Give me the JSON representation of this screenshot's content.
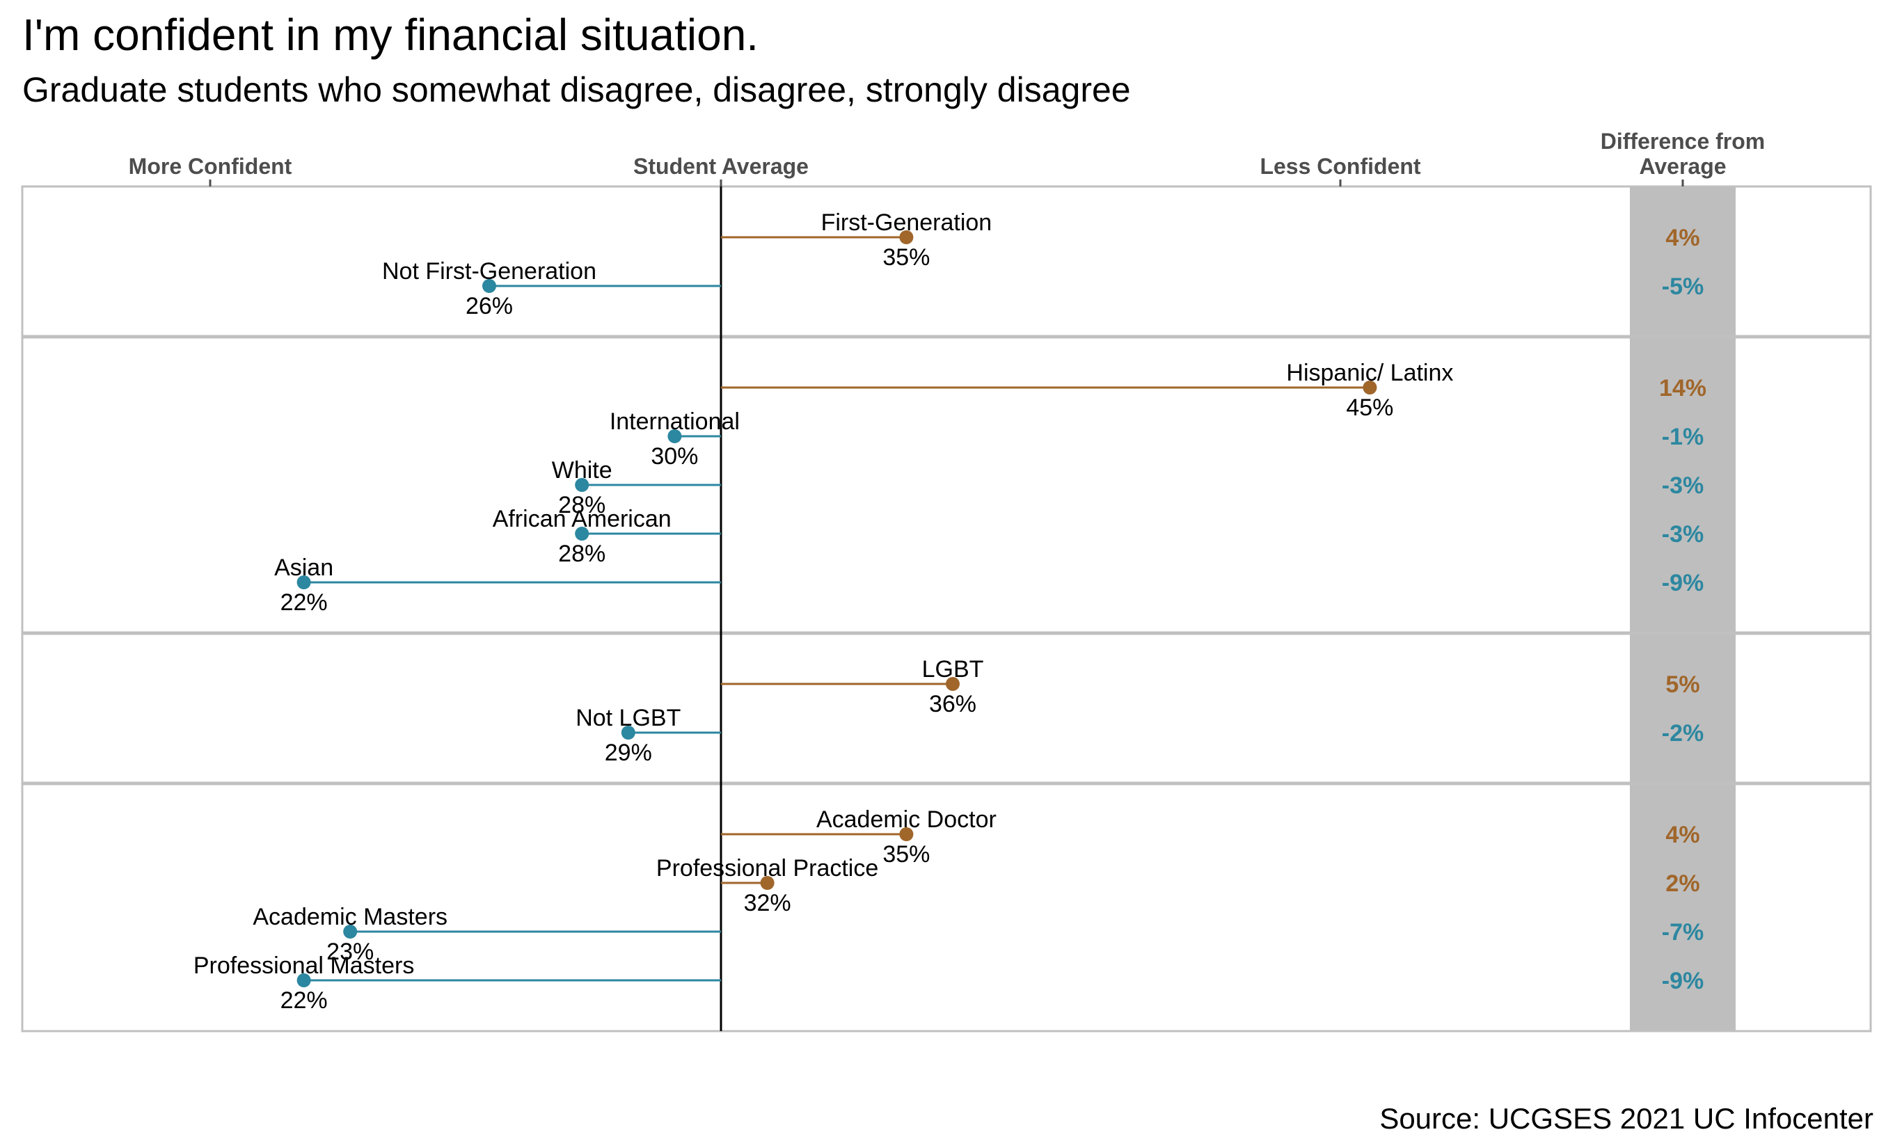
{
  "title": "I'm confident in my financial situation.",
  "subtitle": "Graduate students who somewhat disagree, disagree, strongly disagree",
  "source": "Source: UCGSES 2021 UC Infocenter",
  "colors": {
    "above": "#a0662a",
    "below": "#2c87a0",
    "panel_border": "#c0c0c0",
    "diff_band": "#bebebe"
  },
  "chart_data": {
    "type": "lollipop",
    "axis_labels": {
      "left": "More Confident",
      "center": "Student Average",
      "right": "Less Confident",
      "difference": [
        "Difference from",
        "Average"
      ]
    },
    "student_average": 31,
    "panels": [
      {
        "items": [
          {
            "label": "First-Generation",
            "value": 35,
            "value_label": "35%",
            "diff": "4%"
          },
          {
            "label": "Not First-Generation",
            "value": 26,
            "value_label": "26%",
            "diff": "-5%"
          }
        ]
      },
      {
        "items": [
          {
            "label": "Hispanic/ Latinx",
            "value": 45,
            "value_label": "45%",
            "diff": "14%"
          },
          {
            "label": "International",
            "value": 30,
            "value_label": "30%",
            "diff": "-1%"
          },
          {
            "label": "White",
            "value": 28,
            "value_label": "28%",
            "diff": "-3%"
          },
          {
            "label": "African American",
            "value": 28,
            "value_label": "28%",
            "diff": "-3%"
          },
          {
            "label": "Asian",
            "value": 22,
            "value_label": "22%",
            "diff": "-9%"
          }
        ]
      },
      {
        "items": [
          {
            "label": "LGBT",
            "value": 36,
            "value_label": "36%",
            "diff": "5%"
          },
          {
            "label": "Not LGBT",
            "value": 29,
            "value_label": "29%",
            "diff": "-2%"
          }
        ]
      },
      {
        "items": [
          {
            "label": "Academic Doctor",
            "value": 35,
            "value_label": "35%",
            "diff": "4%"
          },
          {
            "label": "Professional Practice",
            "value": 32,
            "value_label": "32%",
            "diff": "2%"
          },
          {
            "label": "Academic Masters",
            "value": 23,
            "value_label": "23%",
            "diff": "-7%"
          },
          {
            "label": "Professional Masters",
            "value": 22,
            "value_label": "22%",
            "diff": "-9%"
          }
        ]
      }
    ]
  }
}
